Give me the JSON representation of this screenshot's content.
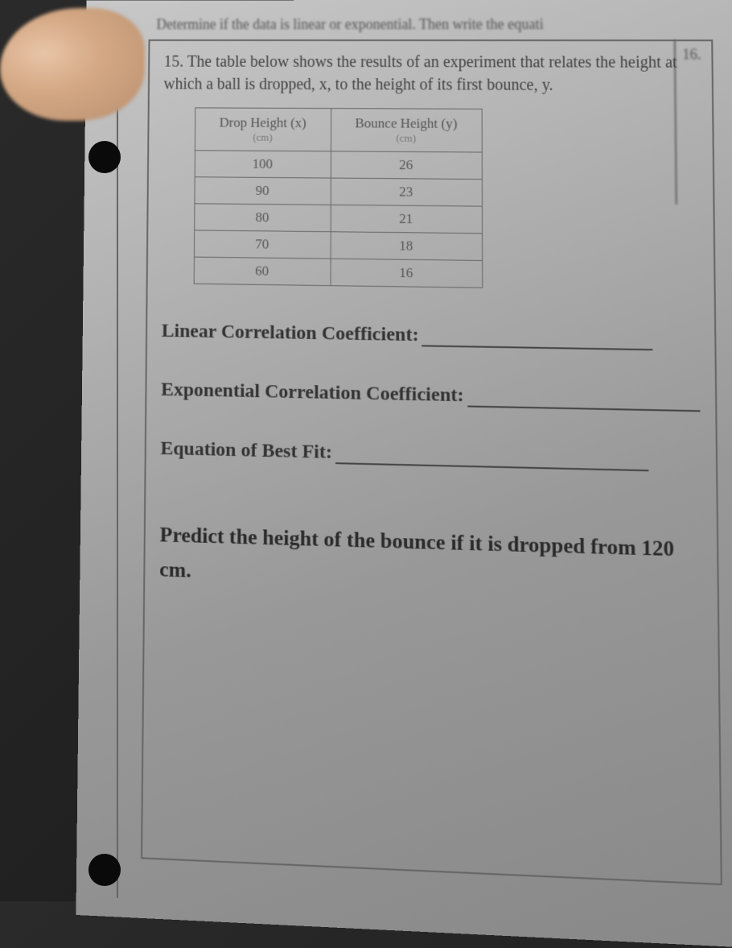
{
  "instruction": "Determine if the data is linear or exponential. Then write the equati",
  "problem_number": "15.",
  "problem_text": "The table below shows the results of an experiment that relates the height at which a ball is dropped, x, to the height of its first bounce, y.",
  "side_number": "16.",
  "table": {
    "header_x": "Drop Height (x)",
    "header_x_sub": "(cm)",
    "header_y": "Bounce Height (y)",
    "header_y_sub": "(cm)",
    "rows": [
      {
        "x": "100",
        "y": "26"
      },
      {
        "x": "90",
        "y": "23"
      },
      {
        "x": "80",
        "y": "21"
      },
      {
        "x": "70",
        "y": "18"
      },
      {
        "x": "60",
        "y": "16"
      }
    ]
  },
  "fields": {
    "linear_label": "Linear Correlation Coefficient:",
    "exponential_label": "Exponential Correlation Coefficient:",
    "equation_label": "Equation of Best Fit:"
  },
  "predict_text": "Predict the height of the bounce if it is dropped from 120 cm.",
  "colors": {
    "paper_bg": "#a8a8a8",
    "text_dark": "#2a2a2a",
    "text_mid": "#444444",
    "border": "#666666"
  }
}
